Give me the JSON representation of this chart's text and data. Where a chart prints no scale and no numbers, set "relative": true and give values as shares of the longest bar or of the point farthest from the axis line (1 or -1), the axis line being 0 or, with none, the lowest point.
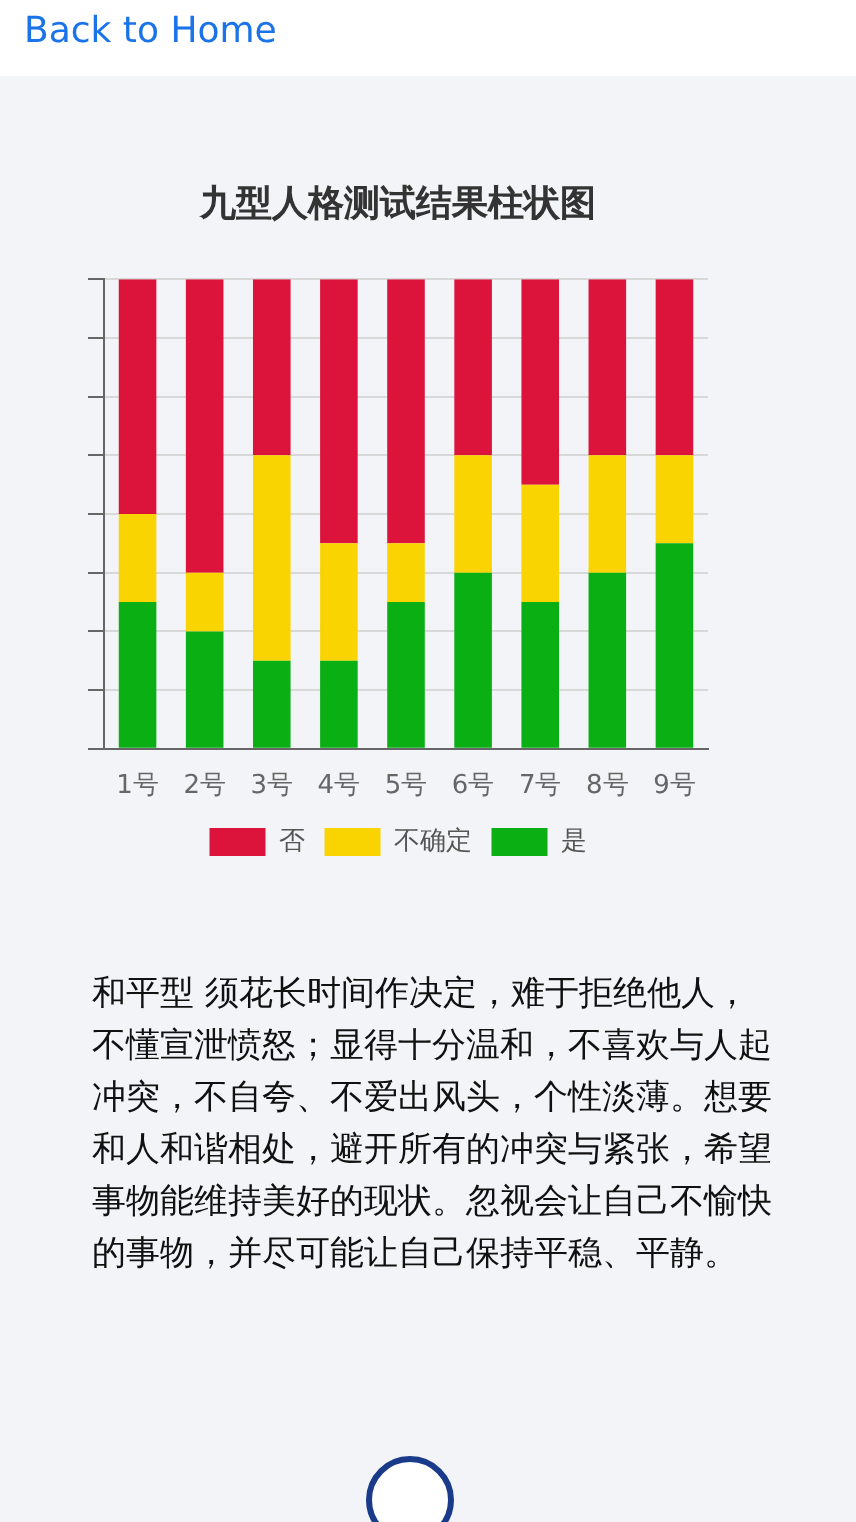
{
  "chart_data": {
    "type": "bar",
    "title": "九型人格测试结果柱状图",
    "categories": [
      "1号",
      "2号",
      "3号",
      "4号",
      "5号",
      "6号",
      "7号",
      "8号",
      "9号"
    ],
    "stacked": true,
    "relative": true,
    "grid": "y",
    "legend": "bottom",
    "series": [
      {
        "name": "是",
        "color": "#0aaf14",
        "values": [
          0.3125,
          0.25,
          0.1875,
          0.1875,
          0.3125,
          0.375,
          0.3125,
          0.375,
          0.4375
        ]
      },
      {
        "name": "不确定",
        "color": "#fad400",
        "values": [
          0.1875,
          0.125,
          0.4375,
          0.25,
          0.125,
          0.25,
          0.25,
          0.25,
          0.1875
        ]
      },
      {
        "name": "否",
        "color": "#dc143c",
        "values": [
          0.5,
          0.625,
          0.375,
          0.5625,
          0.5625,
          0.375,
          0.4375,
          0.375,
          0.375
        ]
      }
    ],
    "annotations": [
      "Back to Home",
      "和平型 须花长时间作决定，难于拒绝他人，不懂宣泄愤怒；显得十分温和，不喜欢与人起冲突，不自夸、不爱出风头，个性淡薄。想要和人和谐相处，避开所有的冲突与紧张，希望事物能维持美好的现状。忽视会让自己不愉快的事物，并尽可能让自己保持平稳、平静。"
    ]
  }
}
